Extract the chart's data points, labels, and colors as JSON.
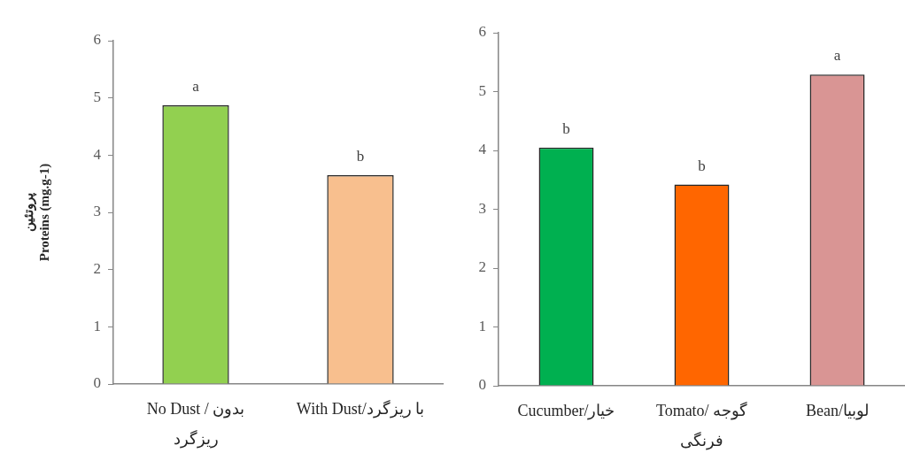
{
  "chart_data": [
    {
      "type": "bar",
      "ylabel": "پروتئین\nProteins (mg.g-1)",
      "categories": [
        "No Dust / بدون ریزگرد",
        "With Dust/با ریزگرد"
      ],
      "values": [
        4.87,
        3.65
      ],
      "colors": [
        "#92d050",
        "#f8bf8e"
      ],
      "value_labels": [
        "a",
        "b"
      ],
      "ylim": [
        0,
        6
      ],
      "yticks": [
        0,
        1,
        2,
        3,
        4,
        5,
        6
      ]
    },
    {
      "type": "bar",
      "categories": [
        "Cucumber/خیار",
        "Tomato/ گوجه فرنگی",
        "Bean/لوبیا"
      ],
      "values": [
        4.05,
        3.42,
        5.29
      ],
      "colors": [
        "#00b050",
        "#ff6600",
        "#d99594"
      ],
      "value_labels": [
        "b",
        "b",
        "a"
      ],
      "ylim": [
        0,
        6
      ],
      "yticks": [
        0,
        1,
        2,
        3,
        4,
        5,
        6
      ]
    }
  ]
}
